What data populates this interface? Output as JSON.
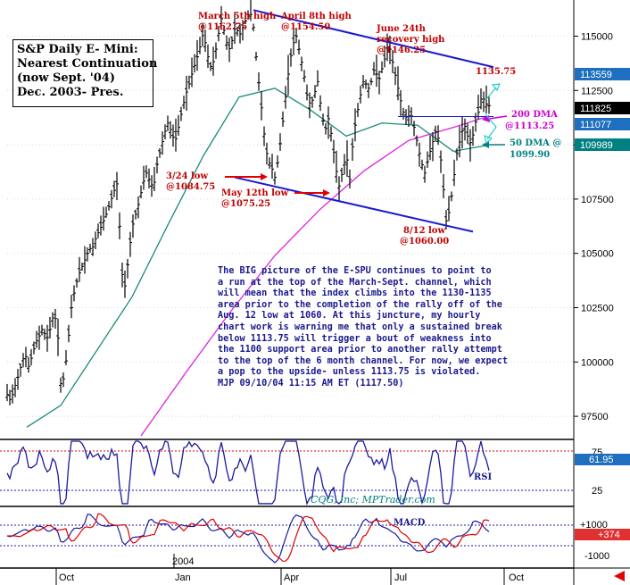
{
  "title_box": {
    "lines": [
      "S&P Daily E- Mini:",
      "Nearest Continuation",
      "(now Sept. '04)",
      "Dec. 2003- Pres."
    ]
  },
  "commentary": {
    "lines": [
      "The BIG picture of the E-SPU continues to point to",
      "a run at the top of the March-Sept. channel, which",
      "will mean that the index climbs into the 1130-1135",
      "area prior to the completion of the rally off of the",
      "Aug. 12 low at 1060. At this juncture, my hourly",
      "chart work is warning me that only a sustained break",
      "below 1113.75 will trigger a bout of weakness into",
      "the 1100 support area prior to another rally attempt",
      "to the top of the 6 month channel. For now, we expect",
      "a pop to the upside- unless 1113.75 is violated.",
      "MJP 09/10/04 11:15 AM ET (1117.50)"
    ]
  },
  "annotations": {
    "march_high": [
      "March 5th high",
      "@1162.75"
    ],
    "april_high": [
      "April 8th high",
      "@1154.50"
    ],
    "june_high": [
      "June 24th",
      "recovery high",
      "@1146.25"
    ],
    "channel_top": "1135.75",
    "march_low": [
      "3/24 low",
      "@1084.75"
    ],
    "may_low": [
      "May 12th low",
      "@1075.25"
    ],
    "aug_low": [
      "8/12  low",
      "@1060.00"
    ],
    "dma200": [
      "200 DMA",
      "@1113.25"
    ],
    "dma50": [
      "50 DMA @",
      "1099.90"
    ],
    "rsi_label": "RSI",
    "macd_label": "MACD",
    "credit": "CQG, Inc; MPTrader.com"
  },
  "chart_data": {
    "type": "candlestick",
    "title": "S&P Daily E- Mini: Nearest Continuation (now Sept. '04) Dec. 2003- Pres.",
    "y_axis": {
      "ticks": [
        97500,
        100000,
        102500,
        105000,
        107500,
        110000,
        112500,
        115000
      ],
      "tick_labels": [
        "97500",
        "100000",
        "102500",
        "105000",
        "107500",
        "110000",
        "112500",
        "115000"
      ],
      "range": [
        96600,
        116500
      ]
    },
    "x_axis": {
      "labels": [
        "Oct",
        "Jan",
        "Apr",
        "Jul",
        "Oct"
      ],
      "year_label": "2004"
    },
    "price_tags": [
      {
        "value": "113559",
        "color": "#1e6fbf"
      },
      {
        "value": "111825",
        "color": "#000000"
      },
      {
        "value": "111077",
        "color": "#1e6fbf"
      },
      {
        "value": "109989",
        "color": "#008080"
      }
    ],
    "close_path": [
      [
        0,
        98500
      ],
      [
        4,
        98200
      ],
      [
        8,
        98800
      ],
      [
        12,
        99300
      ],
      [
        16,
        99900
      ],
      [
        20,
        100400
      ],
      [
        24,
        99800
      ],
      [
        28,
        100300
      ],
      [
        32,
        100900
      ],
      [
        36,
        101200
      ],
      [
        40,
        101600
      ],
      [
        44,
        101000
      ],
      [
        48,
        101500
      ],
      [
        52,
        102200
      ],
      [
        56,
        101800
      ],
      [
        60,
        99000
      ],
      [
        64,
        99300
      ],
      [
        68,
        100800
      ],
      [
        72,
        102500
      ],
      [
        76,
        103400
      ],
      [
        80,
        104000
      ],
      [
        84,
        104400
      ],
      [
        88,
        104800
      ],
      [
        92,
        105200
      ],
      [
        96,
        105300
      ],
      [
        100,
        105800
      ],
      [
        104,
        106100
      ],
      [
        108,
        106500
      ],
      [
        112,
        106900
      ],
      [
        116,
        107400
      ],
      [
        120,
        107900
      ],
      [
        124,
        108300
      ],
      [
        128,
        104200
      ],
      [
        132,
        103500
      ],
      [
        136,
        104800
      ],
      [
        140,
        106200
      ],
      [
        144,
        106800
      ],
      [
        148,
        107400
      ],
      [
        152,
        108200
      ],
      [
        156,
        108700
      ],
      [
        160,
        108300
      ],
      [
        164,
        108000
      ],
      [
        168,
        109100
      ],
      [
        172,
        109800
      ],
      [
        176,
        110500
      ],
      [
        180,
        111000
      ],
      [
        184,
        110600
      ],
      [
        188,
        110100
      ],
      [
        192,
        110800
      ],
      [
        196,
        111600
      ],
      [
        200,
        112300
      ],
      [
        204,
        112800
      ],
      [
        208,
        113400
      ],
      [
        212,
        113900
      ],
      [
        216,
        114500
      ],
      [
        220,
        115200
      ],
      [
        224,
        114200
      ],
      [
        228,
        113600
      ],
      [
        232,
        113900
      ],
      [
        236,
        114900
      ],
      [
        240,
        115800
      ],
      [
        244,
        115100
      ],
      [
        248,
        114300
      ],
      [
        252,
        114800
      ],
      [
        256,
        115500
      ],
      [
        260,
        115000
      ],
      [
        264,
        115400
      ],
      [
        268,
        115800
      ],
      [
        272,
        116200
      ],
      [
        276,
        115400
      ],
      [
        280,
        113600
      ],
      [
        284,
        112100
      ],
      [
        288,
        110500
      ],
      [
        292,
        109300
      ],
      [
        296,
        109000
      ],
      [
        300,
        108500
      ],
      [
        304,
        109400
      ],
      [
        308,
        110700
      ],
      [
        312,
        112200
      ],
      [
        316,
        113600
      ],
      [
        320,
        114600
      ],
      [
        324,
        115000
      ],
      [
        328,
        114200
      ],
      [
        332,
        113400
      ],
      [
        336,
        112300
      ],
      [
        340,
        111800
      ],
      [
        344,
        112300
      ],
      [
        348,
        112900
      ],
      [
        352,
        111600
      ],
      [
        356,
        110600
      ],
      [
        360,
        111200
      ],
      [
        364,
        110300
      ],
      [
        368,
        109000
      ],
      [
        372,
        108100
      ],
      [
        376,
        108800
      ],
      [
        380,
        109600
      ],
      [
        384,
        108400
      ],
      [
        388,
        110400
      ],
      [
        392,
        111400
      ],
      [
        396,
        112300
      ],
      [
        400,
        113100
      ],
      [
        404,
        112500
      ],
      [
        408,
        112900
      ],
      [
        412,
        113600
      ],
      [
        416,
        112900
      ],
      [
        420,
        113500
      ],
      [
        424,
        114100
      ],
      [
        428,
        114600
      ],
      [
        432,
        113800
      ],
      [
        436,
        113000
      ],
      [
        440,
        112200
      ],
      [
        444,
        111500
      ],
      [
        448,
        111200
      ],
      [
        452,
        111500
      ],
      [
        456,
        110800
      ],
      [
        460,
        110000
      ],
      [
        464,
        109200
      ],
      [
        468,
        108700
      ],
      [
        472,
        109400
      ],
      [
        476,
        110000
      ],
      [
        480,
        110600
      ],
      [
        484,
        110200
      ],
      [
        488,
        108400
      ],
      [
        492,
        106500
      ],
      [
        496,
        107000
      ],
      [
        500,
        108300
      ],
      [
        504,
        109600
      ],
      [
        508,
        110300
      ],
      [
        512,
        111000
      ],
      [
        516,
        110400
      ],
      [
        520,
        110000
      ],
      [
        524,
        110900
      ],
      [
        528,
        111500
      ],
      [
        532,
        112300
      ],
      [
        536,
        111900
      ],
      [
        540,
        111800
      ]
    ],
    "dma50_path": [
      [
        22,
        97000
      ],
      [
        60,
        98000
      ],
      [
        100,
        100500
      ],
      [
        140,
        103000
      ],
      [
        180,
        106300
      ],
      [
        220,
        109500
      ],
      [
        260,
        112200
      ],
      [
        300,
        112600
      ],
      [
        340,
        111600
      ],
      [
        380,
        110400
      ],
      [
        420,
        111000
      ],
      [
        460,
        110900
      ],
      [
        500,
        109700
      ],
      [
        540,
        109990
      ]
    ],
    "dma200_path": [
      [
        150,
        96600
      ],
      [
        200,
        99500
      ],
      [
        250,
        102300
      ],
      [
        300,
        104900
      ],
      [
        350,
        107000
      ],
      [
        400,
        108800
      ],
      [
        450,
        110200
      ],
      [
        500,
        110800
      ],
      [
        540,
        111325
      ]
    ],
    "channel_lines": [
      {
        "from": [
          276,
          116200
        ],
        "to": [
          545,
          113575
        ]
      },
      {
        "from": [
          255,
          108500
        ],
        "to": [
          522,
          106000
        ]
      }
    ],
    "rsi": {
      "label": "RSI",
      "scale_labels": [
        "75",
        "50",
        "25"
      ],
      "current": "61.95",
      "overbought": 75,
      "oversold": 25
    },
    "macd": {
      "label": "MACD",
      "scale_labels": [
        "+1000",
        "-1000"
      ],
      "current": "+374"
    }
  }
}
